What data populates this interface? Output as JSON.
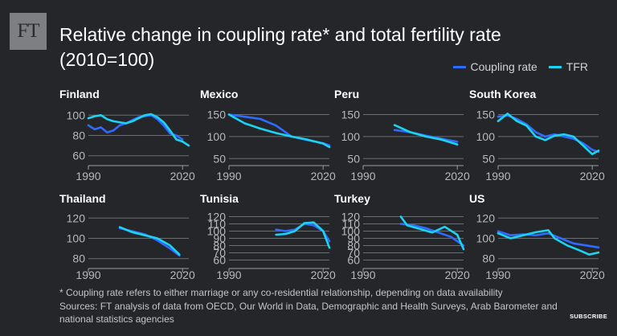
{
  "logo": "FT",
  "title": "Relative change in coupling rate* and total fertility rate (2010=100)",
  "legend": [
    {
      "label": "Coupling rate",
      "color": "#2f6bff"
    },
    {
      "label": "TFR",
      "color": "#1ed3f0"
    }
  ],
  "footnote": "* Coupling rate refers to either marriage or any co-residential relationship, depending on data availability",
  "sources": "Sources: FT analysis of data from OECD, Our World in Data, Demographic and Health Surveys, Arab Barometer and national statistics agencies",
  "subscribe": "SUBSCRIBE",
  "chart_data": [
    {
      "type": "line",
      "title": "Finland",
      "xlim": [
        1990,
        2022
      ],
      "ylim": [
        55,
        105
      ],
      "yticks": [
        60,
        80,
        100
      ],
      "xticks": [
        1990,
        2020
      ],
      "grid": true,
      "series": [
        {
          "name": "Coupling rate",
          "x": [
            1990,
            1992,
            1994,
            1996,
            1998,
            2000,
            2002,
            2004,
            2006,
            2008,
            2010,
            2012,
            2014,
            2016,
            2018,
            2020
          ],
          "y": [
            90,
            86,
            88,
            83,
            85,
            90,
            92,
            95,
            98,
            99,
            100,
            96,
            90,
            82,
            80,
            76
          ]
        },
        {
          "name": "TFR",
          "x": [
            1990,
            1992,
            1994,
            1996,
            1998,
            2000,
            2002,
            2004,
            2006,
            2008,
            2010,
            2012,
            2014,
            2016,
            2018,
            2020,
            2022
          ],
          "y": [
            97,
            99,
            100,
            96,
            94,
            93,
            92,
            94,
            97,
            100,
            101,
            98,
            93,
            85,
            76,
            74,
            70
          ]
        }
      ]
    },
    {
      "type": "line",
      "title": "Mexico",
      "xlim": [
        1990,
        2022
      ],
      "ylim": [
        45,
        160
      ],
      "yticks": [
        50,
        100,
        150
      ],
      "xticks": [
        1990,
        2020
      ],
      "grid": true,
      "series": [
        {
          "name": "Coupling rate",
          "x": [
            1990,
            1995,
            2000,
            2005,
            2010,
            2015,
            2020,
            2022
          ],
          "y": [
            150,
            145,
            140,
            125,
            100,
            92,
            85,
            80
          ]
        },
        {
          "name": "TFR",
          "x": [
            1990,
            1995,
            2000,
            2005,
            2010,
            2015,
            2020,
            2022
          ],
          "y": [
            150,
            130,
            118,
            108,
            100,
            93,
            84,
            76
          ]
        }
      ]
    },
    {
      "type": "line",
      "title": "Peru",
      "xlim": [
        1990,
        2022
      ],
      "ylim": [
        45,
        160
      ],
      "yticks": [
        50,
        100,
        150
      ],
      "xticks": [
        1990,
        2020
      ],
      "grid": true,
      "series": [
        {
          "name": "Coupling rate",
          "x": [
            2000,
            2005,
            2010,
            2015,
            2020
          ],
          "y": [
            115,
            110,
            102,
            95,
            88
          ]
        },
        {
          "name": "TFR",
          "x": [
            2000,
            2005,
            2010,
            2015,
            2020
          ],
          "y": [
            126,
            110,
            100,
            93,
            82
          ]
        }
      ]
    },
    {
      "type": "line",
      "title": "South Korea",
      "xlim": [
        1990,
        2022
      ],
      "ylim": [
        45,
        160
      ],
      "yticks": [
        50,
        100,
        150
      ],
      "xticks": [
        1990,
        2020
      ],
      "grid": true,
      "series": [
        {
          "name": "Coupling rate",
          "x": [
            1990,
            1993,
            1996,
            1999,
            2002,
            2005,
            2008,
            2011,
            2014,
            2017,
            2020,
            2022
          ],
          "y": [
            145,
            148,
            140,
            128,
            110,
            100,
            105,
            100,
            95,
            85,
            70,
            65
          ]
        },
        {
          "name": "TFR",
          "x": [
            1990,
            1993,
            1996,
            1999,
            2002,
            2005,
            2008,
            2011,
            2014,
            2017,
            2020,
            2022
          ],
          "y": [
            135,
            152,
            135,
            125,
            100,
            92,
            102,
            105,
            100,
            80,
            60,
            68
          ]
        }
      ]
    },
    {
      "type": "line",
      "title": "Thailand",
      "xlim": [
        1990,
        2022
      ],
      "ylim": [
        75,
        125
      ],
      "yticks": [
        80,
        100,
        120
      ],
      "xticks": [
        1990,
        2020
      ],
      "grid": true,
      "series": [
        {
          "name": "Coupling rate",
          "x": [
            2000,
            2004,
            2008,
            2012,
            2016,
            2019
          ],
          "y": [
            110,
            107,
            104,
            98,
            90,
            83
          ]
        },
        {
          "name": "TFR",
          "x": [
            2000,
            2004,
            2008,
            2012,
            2016,
            2019
          ],
          "y": [
            111,
            106,
            103,
            100,
            93,
            84
          ]
        }
      ]
    },
    {
      "type": "line",
      "title": "Tunisia",
      "xlim": [
        1990,
        2022
      ],
      "ylim": [
        55,
        125
      ],
      "yticks": [
        60,
        70,
        80,
        90,
        100,
        110,
        120
      ],
      "xticks": [
        1990,
        2020
      ],
      "grid": true,
      "series": [
        {
          "name": "Coupling rate",
          "x": [
            2005,
            2008,
            2011,
            2014,
            2017,
            2020,
            2022
          ],
          "y": [
            102,
            100,
            102,
            110,
            108,
            100,
            86
          ]
        },
        {
          "name": "TFR",
          "x": [
            2005,
            2008,
            2011,
            2014,
            2017,
            2020,
            2022
          ],
          "y": [
            95,
            96,
            100,
            111,
            112,
            100,
            77
          ]
        }
      ]
    },
    {
      "type": "line",
      "title": "Turkey",
      "xlim": [
        1990,
        2022
      ],
      "ylim": [
        55,
        125
      ],
      "yticks": [
        60,
        70,
        80,
        90,
        100,
        110,
        120
      ],
      "xticks": [
        1990,
        2020
      ],
      "grid": true,
      "series": [
        {
          "name": "Coupling rate",
          "x": [
            2002,
            2006,
            2010,
            2014,
            2018,
            2022
          ],
          "y": [
            110,
            108,
            104,
            98,
            92,
            80
          ]
        },
        {
          "name": "TFR",
          "x": [
            2002,
            2004,
            2008,
            2012,
            2016,
            2020,
            2022
          ],
          "y": [
            120,
            108,
            103,
            98,
            106,
            95,
            75
          ]
        }
      ]
    },
    {
      "type": "line",
      "title": "US",
      "xlim": [
        1990,
        2022
      ],
      "ylim": [
        75,
        125
      ],
      "yticks": [
        80,
        100,
        120
      ],
      "xticks": [
        1990,
        2020
      ],
      "grid": true,
      "series": [
        {
          "name": "Coupling rate",
          "x": [
            1990,
            1994,
            1998,
            2002,
            2006,
            2010,
            2014,
            2018,
            2022
          ],
          "y": [
            107,
            103,
            104,
            103,
            105,
            100,
            95,
            93,
            91
          ]
        },
        {
          "name": "TFR",
          "x": [
            1990,
            1994,
            1998,
            2002,
            2006,
            2008,
            2012,
            2016,
            2019,
            2022
          ],
          "y": [
            105,
            100,
            103,
            106,
            108,
            100,
            93,
            88,
            84,
            86
          ]
        }
      ]
    }
  ]
}
